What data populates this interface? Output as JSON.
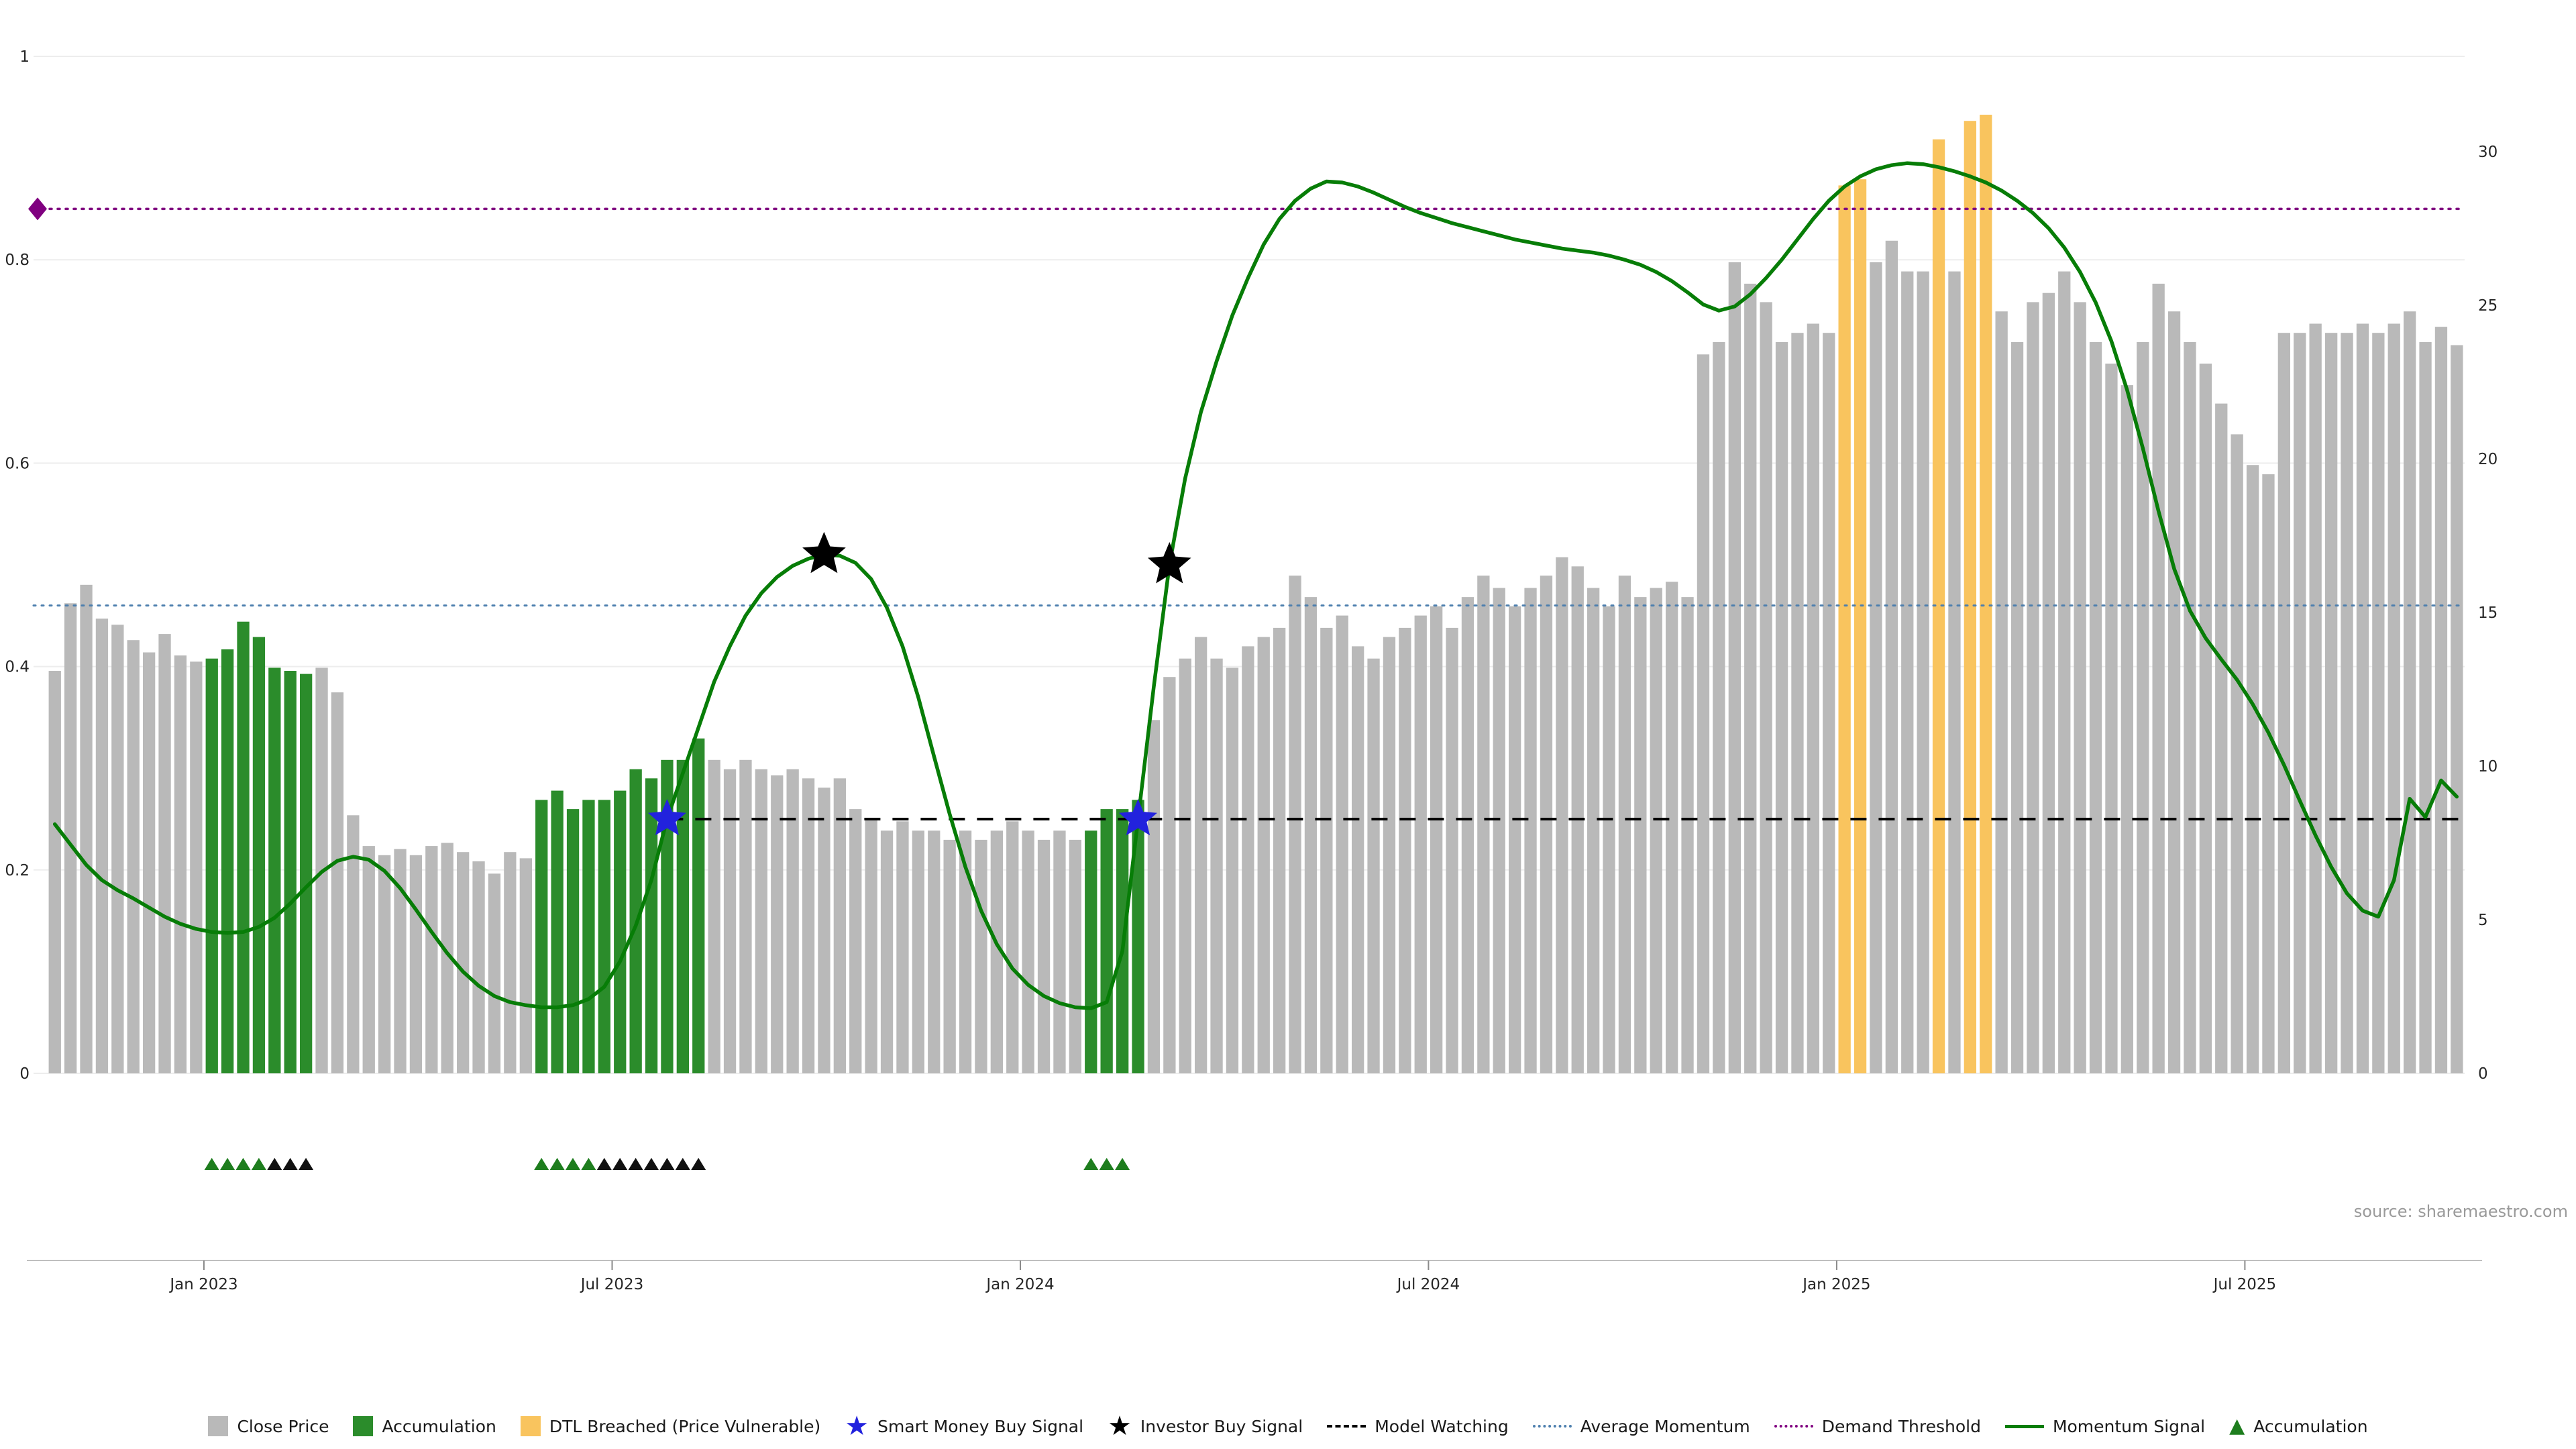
{
  "source_credit": "source: sharemaestro.com",
  "colors": {
    "close_bar": "#b9b9b9",
    "accumulation_bar": "#2b8c2b",
    "dtl_bar": "#f9c45e",
    "momentum_line": "#077d07",
    "average_momentum": "#4d7fae",
    "demand_threshold": "#800080",
    "model_watching": "#000000",
    "smart_money_star": "#2222dd",
    "investor_star": "#000000",
    "triangle_green": "#1e7d1e",
    "triangle_black": "#111111",
    "grid": "#ededed",
    "axis_line": "#bfbfbf",
    "tick_text": "#262626"
  },
  "chart_data": {
    "type": "bar+line",
    "title": "",
    "x_tick_labels": [
      "Jan 2023",
      "Jul 2023",
      "Jan 2024",
      "Jul 2024",
      "Jan 2025",
      "Jul 2025"
    ],
    "x_ticks": [
      {
        "index": 9.5,
        "label": "Jan 2023"
      },
      {
        "index": 35.5,
        "label": "Jul 2023"
      },
      {
        "index": 61.5,
        "label": "Jan 2024"
      },
      {
        "index": 87.5,
        "label": "Jul 2024"
      },
      {
        "index": 113.5,
        "label": "Jan 2025"
      },
      {
        "index": 139.5,
        "label": "Jul 2025"
      }
    ],
    "left_axis": {
      "ticks": [
        0,
        0.2,
        0.4,
        0.6,
        0.8,
        1
      ],
      "min": 0,
      "max": 1.05
    },
    "right_axis": {
      "ticks": [
        0,
        5,
        10,
        15,
        20,
        25,
        30
      ],
      "min": 0,
      "max": 32
    },
    "close_price": [
      13.1,
      15.3,
      15.9,
      14.8,
      14.6,
      14.1,
      13.7,
      14.3,
      13.6,
      13.4,
      13.5,
      13.8,
      14.7,
      14.2,
      13.2,
      13.1,
      13.0,
      13.2,
      12.4,
      8.4,
      7.4,
      7.1,
      7.3,
      7.1,
      7.4,
      7.5,
      7.2,
      6.9,
      6.5,
      7.2,
      7.0,
      8.9,
      9.2,
      8.6,
      8.9,
      8.9,
      9.2,
      9.9,
      9.6,
      10.2,
      10.2,
      10.9,
      10.2,
      9.9,
      10.2,
      9.9,
      9.7,
      9.9,
      9.6,
      9.3,
      9.6,
      8.6,
      8.3,
      7.9,
      8.2,
      7.9,
      7.9,
      7.6,
      7.9,
      7.6,
      7.9,
      8.2,
      7.9,
      7.6,
      7.9,
      7.6,
      7.9,
      8.6,
      8.6,
      8.9,
      11.5,
      12.9,
      13.5,
      14.2,
      13.5,
      13.2,
      13.9,
      14.2,
      14.5,
      16.2,
      15.5,
      14.5,
      14.9,
      13.9,
      13.5,
      14.2,
      14.5,
      14.9,
      15.2,
      14.5,
      15.5,
      16.2,
      15.8,
      15.2,
      15.8,
      16.2,
      16.8,
      16.5,
      15.8,
      15.2,
      16.2,
      15.5,
      15.8,
      16.0,
      15.5,
      23.4,
      23.8,
      26.4,
      25.7,
      25.1,
      23.8,
      24.1,
      24.4,
      24.1,
      28.9,
      29.1,
      26.4,
      27.1,
      26.1,
      26.1,
      30.4,
      26.1,
      31.0,
      31.2,
      24.8,
      23.8,
      25.1,
      25.4,
      26.1,
      25.1,
      23.8,
      23.1,
      22.4,
      23.8,
      25.7,
      24.8,
      23.8,
      23.1,
      21.8,
      20.8,
      19.8,
      19.5,
      24.1,
      24.1,
      24.4,
      24.1,
      24.1,
      24.4,
      24.1,
      24.4,
      24.8,
      23.8,
      24.3,
      23.7
    ],
    "accumulation_bar_indices": [
      10,
      11,
      12,
      13,
      14,
      15,
      16,
      31,
      32,
      33,
      34,
      35,
      36,
      37,
      38,
      39,
      40,
      41,
      66,
      67,
      68,
      69
    ],
    "dtl_breached_bar_indices": [
      114,
      115,
      120,
      122,
      123
    ],
    "momentum_signal": [
      0.245,
      0.225,
      0.205,
      0.19,
      0.18,
      0.172,
      0.163,
      0.154,
      0.147,
      0.142,
      0.139,
      0.138,
      0.139,
      0.144,
      0.153,
      0.167,
      0.183,
      0.198,
      0.209,
      0.213,
      0.21,
      0.199,
      0.182,
      0.161,
      0.139,
      0.118,
      0.1,
      0.086,
      0.076,
      0.07,
      0.067,
      0.065,
      0.065,
      0.067,
      0.073,
      0.085,
      0.11,
      0.145,
      0.19,
      0.25,
      0.295,
      0.34,
      0.385,
      0.42,
      0.45,
      0.472,
      0.488,
      0.499,
      0.506,
      0.51,
      0.509,
      0.502,
      0.486,
      0.458,
      0.42,
      0.37,
      0.312,
      0.255,
      0.203,
      0.16,
      0.127,
      0.103,
      0.087,
      0.076,
      0.069,
      0.065,
      0.064,
      0.07,
      0.12,
      0.25,
      0.38,
      0.5,
      0.585,
      0.65,
      0.7,
      0.745,
      0.782,
      0.815,
      0.84,
      0.858,
      0.87,
      0.877,
      0.876,
      0.872,
      0.866,
      0.859,
      0.852,
      0.846,
      0.841,
      0.836,
      0.832,
      0.828,
      0.824,
      0.82,
      0.817,
      0.814,
      0.811,
      0.809,
      0.807,
      0.804,
      0.8,
      0.795,
      0.788,
      0.779,
      0.768,
      0.756,
      0.75,
      0.754,
      0.766,
      0.782,
      0.8,
      0.82,
      0.84,
      0.858,
      0.872,
      0.882,
      0.889,
      0.893,
      0.895,
      0.894,
      0.891,
      0.887,
      0.882,
      0.876,
      0.868,
      0.858,
      0.846,
      0.831,
      0.812,
      0.788,
      0.758,
      0.72,
      0.672,
      0.615,
      0.553,
      0.496,
      0.455,
      0.428,
      0.407,
      0.387,
      0.363,
      0.335,
      0.303,
      0.268,
      0.234,
      0.203,
      0.177,
      0.16,
      0.154,
      0.19,
      0.27,
      0.252,
      0.288,
      0.272
    ],
    "reference_lines": {
      "model_watching": 0.25,
      "average_momentum": 0.46,
      "demand_threshold": 0.85
    },
    "model_watching_start_index": 39,
    "markers": {
      "smart_money_buy": [
        {
          "index": 39,
          "value": 0.25
        },
        {
          "index": 69,
          "value": 0.25
        }
      ],
      "investor_buy": [
        {
          "index": 49,
          "value": 0.51
        },
        {
          "index": 71,
          "value": 0.5
        }
      ],
      "demand_threshold_start": {
        "value": 0.85
      }
    },
    "accumulation_triangles": {
      "green": [
        10,
        11,
        12,
        13,
        31,
        32,
        33,
        34,
        66,
        67,
        68
      ],
      "black": [
        14,
        15,
        16,
        35,
        36,
        37,
        38,
        39,
        40,
        41
      ]
    }
  },
  "legend": {
    "items": [
      {
        "label": "Close Price",
        "swatch": "square",
        "color": "#b9b9b9"
      },
      {
        "label": "Accumulation",
        "swatch": "square",
        "color": "#2b8c2b"
      },
      {
        "label": "DTL Breached (Price Vulnerable)",
        "swatch": "square",
        "color": "#f9c45e"
      },
      {
        "label": "Smart Money Buy Signal",
        "swatch": "star",
        "color": "#2222dd"
      },
      {
        "label": "Investor Buy Signal",
        "swatch": "star",
        "color": "#000000"
      },
      {
        "label": "Model Watching",
        "swatch": "dashed",
        "color": "#000000"
      },
      {
        "label": "Average Momentum",
        "swatch": "dotted",
        "color": "#4d7fae"
      },
      {
        "label": "Demand Threshold",
        "swatch": "dotted",
        "color": "#800080"
      },
      {
        "label": "Momentum Signal",
        "swatch": "solid",
        "color": "#077d07"
      },
      {
        "label": "Accumulation",
        "swatch": "triangle",
        "color": "#1e7d1e"
      }
    ]
  }
}
